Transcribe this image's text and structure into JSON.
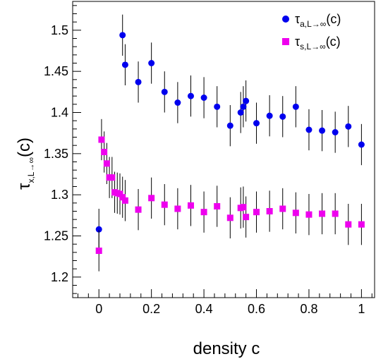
{
  "chart_data": {
    "type": "scatter",
    "title": "",
    "xlabel": "density c",
    "ylabel": {
      "base": "τ",
      "subscript": "x,L→∞",
      "suffix": "(c)"
    },
    "xlim": [
      -0.1,
      1.05
    ],
    "ylim": [
      1.175,
      1.535
    ],
    "x_ticks": [
      0,
      0.2,
      0.4,
      0.6,
      0.8,
      1
    ],
    "x_tick_labels": [
      "0",
      "0.2",
      "0.4",
      "0.6",
      "0.8",
      "1"
    ],
    "y_ticks": [
      1.2,
      1.25,
      1.3,
      1.35,
      1.4,
      1.45,
      1.5
    ],
    "y_tick_labels": [
      "1.2",
      "1.25",
      "1.3",
      "1.35",
      "1.4",
      "1.45",
      "1.5"
    ],
    "grid": false,
    "legend_position": "top-right",
    "series": [
      {
        "name": "τa,L→∞(c)",
        "name_parts": {
          "base": "τ",
          "subscript": "a,L→∞",
          "suffix": "(c)"
        },
        "marker": "circle",
        "color": "#0000ee",
        "points": [
          {
            "x": 0.0,
            "y": 1.258,
            "err": 0.025
          },
          {
            "x": 0.09,
            "y": 1.494,
            "err": 0.025
          },
          {
            "x": 0.1,
            "y": 1.458,
            "err": 0.025
          },
          {
            "x": 0.15,
            "y": 1.437,
            "err": 0.025
          },
          {
            "x": 0.2,
            "y": 1.46,
            "err": 0.025
          },
          {
            "x": 0.25,
            "y": 1.425,
            "err": 0.025
          },
          {
            "x": 0.3,
            "y": 1.412,
            "err": 0.025
          },
          {
            "x": 0.35,
            "y": 1.42,
            "err": 0.025
          },
          {
            "x": 0.4,
            "y": 1.418,
            "err": 0.025
          },
          {
            "x": 0.45,
            "y": 1.407,
            "err": 0.025
          },
          {
            "x": 0.5,
            "y": 1.384,
            "err": 0.025
          },
          {
            "x": 0.54,
            "y": 1.4,
            "err": 0.025
          },
          {
            "x": 0.55,
            "y": 1.407,
            "err": 0.025
          },
          {
            "x": 0.56,
            "y": 1.414,
            "err": 0.025
          },
          {
            "x": 0.6,
            "y": 1.387,
            "err": 0.025
          },
          {
            "x": 0.65,
            "y": 1.396,
            "err": 0.025
          },
          {
            "x": 0.7,
            "y": 1.395,
            "err": 0.025
          },
          {
            "x": 0.75,
            "y": 1.407,
            "err": 0.025
          },
          {
            "x": 0.8,
            "y": 1.379,
            "err": 0.025
          },
          {
            "x": 0.85,
            "y": 1.378,
            "err": 0.025
          },
          {
            "x": 0.9,
            "y": 1.376,
            "err": 0.025
          },
          {
            "x": 0.95,
            "y": 1.383,
            "err": 0.025
          },
          {
            "x": 1.0,
            "y": 1.361,
            "err": 0.025
          }
        ]
      },
      {
        "name": "τs,L→∞(c)",
        "name_parts": {
          "base": "τ",
          "subscript": "s,L→∞",
          "suffix": "(c)"
        },
        "marker": "square",
        "color": "#ee00ee",
        "points": [
          {
            "x": 0.0,
            "y": 1.232,
            "err": 0.025
          },
          {
            "x": 0.01,
            "y": 1.367,
            "err": 0.025
          },
          {
            "x": 0.02,
            "y": 1.352,
            "err": 0.025
          },
          {
            "x": 0.03,
            "y": 1.338,
            "err": 0.025
          },
          {
            "x": 0.04,
            "y": 1.321,
            "err": 0.025
          },
          {
            "x": 0.05,
            "y": 1.321,
            "err": 0.025
          },
          {
            "x": 0.06,
            "y": 1.303,
            "err": 0.025
          },
          {
            "x": 0.07,
            "y": 1.302,
            "err": 0.025
          },
          {
            "x": 0.08,
            "y": 1.301,
            "err": 0.025
          },
          {
            "x": 0.09,
            "y": 1.297,
            "err": 0.025
          },
          {
            "x": 0.1,
            "y": 1.293,
            "err": 0.025
          },
          {
            "x": 0.15,
            "y": 1.282,
            "err": 0.025
          },
          {
            "x": 0.2,
            "y": 1.296,
            "err": 0.025
          },
          {
            "x": 0.25,
            "y": 1.288,
            "err": 0.025
          },
          {
            "x": 0.3,
            "y": 1.283,
            "err": 0.025
          },
          {
            "x": 0.35,
            "y": 1.287,
            "err": 0.025
          },
          {
            "x": 0.4,
            "y": 1.279,
            "err": 0.025
          },
          {
            "x": 0.45,
            "y": 1.286,
            "err": 0.025
          },
          {
            "x": 0.5,
            "y": 1.272,
            "err": 0.025
          },
          {
            "x": 0.54,
            "y": 1.284,
            "err": 0.025
          },
          {
            "x": 0.55,
            "y": 1.285,
            "err": 0.025
          },
          {
            "x": 0.56,
            "y": 1.273,
            "err": 0.025
          },
          {
            "x": 0.6,
            "y": 1.279,
            "err": 0.025
          },
          {
            "x": 0.65,
            "y": 1.28,
            "err": 0.025
          },
          {
            "x": 0.7,
            "y": 1.283,
            "err": 0.025
          },
          {
            "x": 0.75,
            "y": 1.278,
            "err": 0.025
          },
          {
            "x": 0.8,
            "y": 1.276,
            "err": 0.025
          },
          {
            "x": 0.85,
            "y": 1.277,
            "err": 0.025
          },
          {
            "x": 0.9,
            "y": 1.277,
            "err": 0.025
          },
          {
            "x": 0.95,
            "y": 1.264,
            "err": 0.025
          },
          {
            "x": 1.0,
            "y": 1.264,
            "err": 0.025
          }
        ]
      }
    ]
  }
}
